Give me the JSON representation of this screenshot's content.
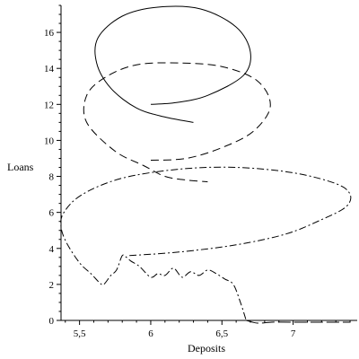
{
  "chart_data": {
    "type": "line",
    "xlabel": "Deposits",
    "ylabel": "Loans",
    "xlim": [
      5.37,
      7.45
    ],
    "ylim": [
      0,
      17.5
    ],
    "xticks": [
      {
        "value": 5.5,
        "label": "5,5"
      },
      {
        "value": 6.0,
        "label": "6"
      },
      {
        "value": 6.5,
        "label": "6,5"
      },
      {
        "value": 7.0,
        "label": "7"
      }
    ],
    "yticks": [
      {
        "value": 0,
        "label": "0"
      },
      {
        "value": 2,
        "label": "2"
      },
      {
        "value": 4,
        "label": "4"
      },
      {
        "value": 6,
        "label": "6"
      },
      {
        "value": 8,
        "label": "8"
      },
      {
        "value": 10,
        "label": "10"
      },
      {
        "value": 12,
        "label": "12"
      },
      {
        "value": 14,
        "label": "14"
      },
      {
        "value": 16,
        "label": "16"
      }
    ],
    "grid": false,
    "legend": "none",
    "series": [
      {
        "style": "solid",
        "color": "#000000",
        "x": [
          6.0,
          6.18,
          6.4,
          6.65,
          6.7,
          6.6,
          6.35,
          6.05,
          5.8,
          5.63,
          5.62,
          5.72,
          5.9,
          6.1,
          6.3
        ],
        "y": [
          12.0,
          12.1,
          12.5,
          13.6,
          14.9,
          16.3,
          17.3,
          17.4,
          16.9,
          15.7,
          14.3,
          12.9,
          11.8,
          11.3,
          11.0
        ]
      },
      {
        "style": "dash",
        "color": "#000000",
        "x": [
          6.0,
          6.25,
          6.5,
          6.72,
          6.84,
          6.75,
          6.5,
          6.2,
          5.9,
          5.68,
          5.55,
          5.55,
          5.75,
          5.95,
          6.1,
          6.25,
          6.4
        ],
        "y": [
          8.9,
          9.0,
          9.6,
          10.5,
          11.9,
          13.3,
          14.1,
          14.3,
          14.2,
          13.5,
          12.5,
          11.0,
          9.4,
          8.6,
          8.0,
          7.8,
          7.7
        ]
      },
      {
        "style": "dashdot",
        "color": "#000000",
        "x": [
          5.85,
          6.2,
          6.6,
          6.95,
          7.2,
          7.37,
          7.4,
          7.3,
          7.0,
          6.6,
          6.2,
          5.8,
          5.52,
          5.39,
          5.37,
          5.41,
          5.5,
          5.58,
          5.64,
          5.67,
          5.72,
          5.76,
          5.8,
          5.83,
          5.86,
          5.92,
          6.0,
          6.05,
          6.1,
          6.16,
          6.22,
          6.28,
          6.34,
          6.4,
          6.46,
          6.52,
          6.58,
          6.63,
          6.67
        ],
        "y": [
          3.6,
          3.8,
          4.2,
          4.8,
          5.6,
          6.3,
          7.0,
          7.6,
          8.2,
          8.5,
          8.4,
          7.9,
          7.0,
          6.0,
          5.2,
          4.3,
          3.2,
          2.6,
          2.1,
          2.0,
          2.5,
          2.8,
          3.6,
          3.5,
          3.3,
          3.0,
          2.4,
          2.6,
          2.5,
          2.9,
          2.4,
          2.7,
          2.5,
          2.8,
          2.6,
          2.3,
          2.0,
          1.0,
          0.0
        ]
      },
      {
        "style": "longdash",
        "color": "#000000",
        "x": [
          6.67,
          6.75,
          6.85,
          7.0,
          7.2,
          7.4
        ],
        "y": [
          0.0,
          -0.15,
          -0.1,
          -0.1,
          -0.1,
          -0.1
        ]
      }
    ]
  }
}
